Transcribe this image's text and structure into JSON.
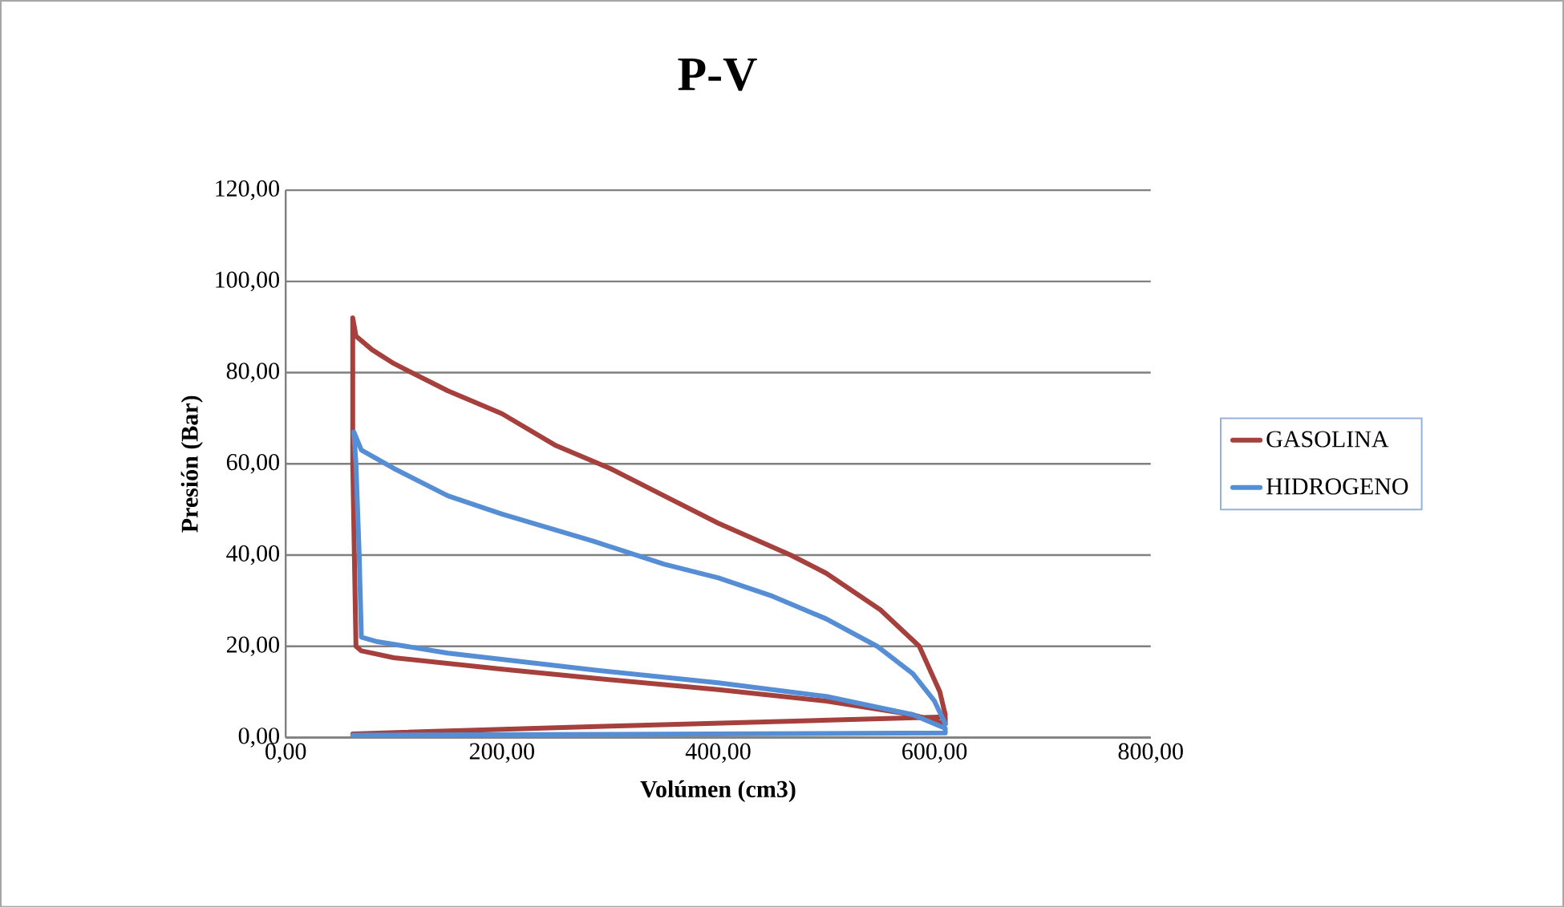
{
  "chart_data": {
    "type": "line",
    "title": "P-V",
    "xlabel": "Volúmen (cm3)",
    "ylabel": "Presión (Bar)",
    "xlim": [
      0,
      800
    ],
    "ylim": [
      0,
      120
    ],
    "xticks": [
      {
        "value": 0,
        "label": "0,00"
      },
      {
        "value": 200,
        "label": "200,00"
      },
      {
        "value": 400,
        "label": "400,00"
      },
      {
        "value": 600,
        "label": "600,00"
      },
      {
        "value": 800,
        "label": "800,00"
      }
    ],
    "yticks": [
      {
        "value": 0,
        "label": "0,00"
      },
      {
        "value": 20,
        "label": "20,00"
      },
      {
        "value": 40,
        "label": "40,00"
      },
      {
        "value": 60,
        "label": "60,00"
      },
      {
        "value": 80,
        "label": "80,00"
      },
      {
        "value": 100,
        "label": "100,00"
      },
      {
        "value": 120,
        "label": "120,00"
      }
    ],
    "grid": "y",
    "legend": "right",
    "series": [
      {
        "name": "GASOLINA",
        "color": "#a5403d",
        "x": [
          62,
          300,
          610,
          610,
          580,
          500,
          400,
          285,
          200,
          100,
          70,
          65,
          62,
          62,
          65,
          80,
          100,
          150,
          200,
          250,
          300,
          350,
          400,
          467,
          500,
          550,
          586,
          605,
          610
        ],
        "values": [
          0.8,
          2.5,
          4.5,
          3,
          5,
          8,
          10.5,
          13,
          15,
          17.5,
          19,
          20,
          60,
          92,
          88,
          85,
          82,
          76,
          71,
          64,
          59,
          53,
          47,
          40,
          36,
          28,
          20,
          10,
          5
        ]
      },
      {
        "name": "HIDROGENO",
        "color": "#558ed5",
        "x": [
          62,
          300,
          610,
          610,
          580,
          500,
          400,
          285,
          150,
          85,
          70,
          68,
          65,
          63,
          70,
          100,
          150,
          200,
          285,
          350,
          400,
          450,
          500,
          547,
          580,
          600,
          610
        ],
        "values": [
          0.5,
          0.7,
          1,
          2,
          5,
          9,
          12,
          14.8,
          18.5,
          21,
          22,
          40,
          60,
          67,
          63,
          59,
          53,
          49,
          43,
          38,
          35,
          31,
          26,
          20,
          14,
          8,
          3
        ]
      }
    ]
  }
}
